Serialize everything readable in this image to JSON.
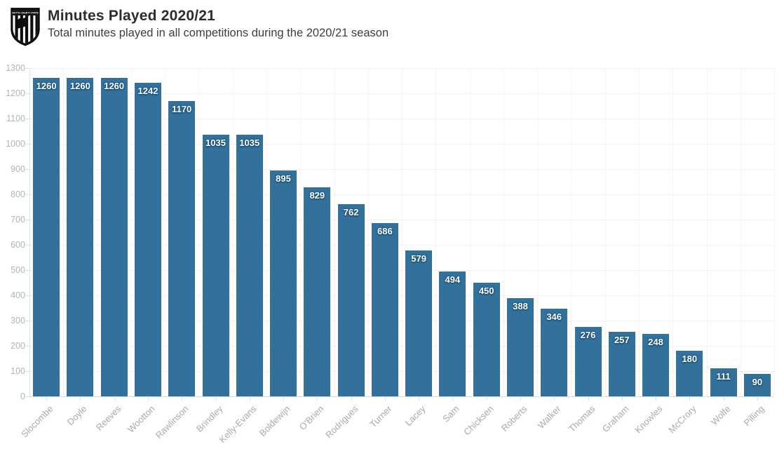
{
  "header": {
    "title": "Minutes Played 2020/21",
    "subtitle": "Total minutes played in all competitions during the 2020/21 season",
    "logo": {
      "name": "notts-county-stats-crest",
      "banner_text": "NOTTS COUNTY STATS"
    }
  },
  "chart_data": {
    "type": "bar",
    "title": "Minutes Played 2020/21",
    "subtitle": "Total minutes played in all competitions during the 2020/21 season",
    "categories": [
      "Slocombe",
      "Doyle",
      "Reeves",
      "Wootton",
      "Rawlinson",
      "Brindley",
      "Kelly-Evans",
      "Boldewijn",
      "O'Brien",
      "Rodrigues",
      "Turner",
      "Lacey",
      "Sam",
      "Chicksen",
      "Roberts",
      "Walker",
      "Thomas",
      "Graham",
      "Knowles",
      "McCrory",
      "Wolfe",
      "Pilling"
    ],
    "values": [
      1260,
      1260,
      1260,
      1242,
      1170,
      1035,
      1035,
      895,
      829,
      762,
      686,
      579,
      494,
      450,
      388,
      346,
      276,
      257,
      248,
      180,
      111,
      90
    ],
    "xlabel": "",
    "ylabel": "",
    "ylim": [
      0,
      1300
    ],
    "ytick_step": 100,
    "grid": true,
    "legend": false,
    "colors": {
      "bar": "#31719b",
      "value_label": "#ffffff",
      "axis_text": "#acacb2",
      "gridline": "#f0f0f0",
      "gridline_vertical": "#f4f4f4",
      "axis_line": "#d9d9d9"
    }
  }
}
